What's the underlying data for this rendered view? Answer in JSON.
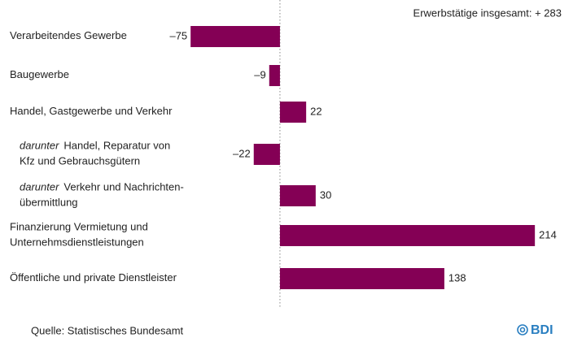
{
  "chart_data": {
    "type": "bar",
    "annotation": "Erwerbstätige insgesamt: + 283",
    "source": "Quelle: Statistisches Bundesamt",
    "logo": "BDI",
    "categories": [
      {
        "lines": [
          "Verarbeitendes Gewerbe"
        ]
      },
      {
        "lines": [
          "Baugewerbe"
        ]
      },
      {
        "lines": [
          "Handel, Gastgewerbe und Verkehr"
        ]
      },
      {
        "prefix": "darunter",
        "lines": [
          "Handel, Reparatur von",
          "Kfz und Gebrauchsgütern"
        ]
      },
      {
        "prefix": "darunter",
        "lines": [
          "Verkehr und Nachrichten-",
          "übermittlung"
        ]
      },
      {
        "lines": [
          "Finanzierung Vermietung und",
          "Unternehmsdienstleistungen"
        ]
      },
      {
        "lines": [
          "Öffentliche und private Dienstleister"
        ]
      }
    ],
    "values": [
      -75,
      -9,
      22,
      -22,
      30,
      214,
      138
    ],
    "value_labels": [
      "–75",
      "–9",
      "22",
      "–22",
      "30",
      "214",
      "138"
    ],
    "color": "#840055",
    "xlim": [
      -235,
      246
    ]
  }
}
